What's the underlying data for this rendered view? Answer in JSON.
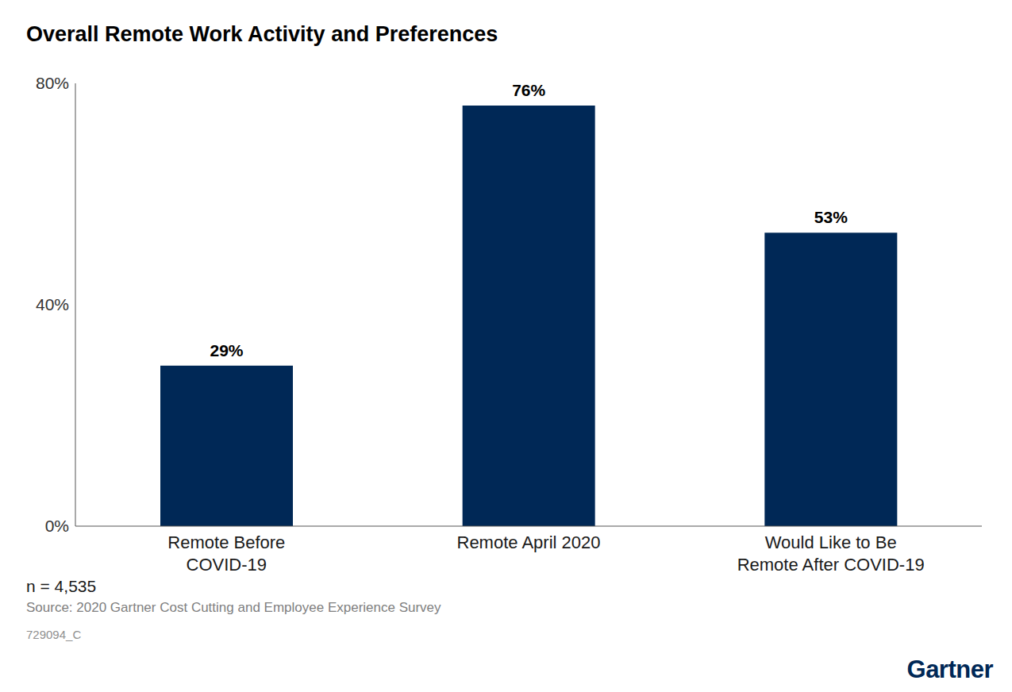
{
  "chart_data": {
    "type": "bar",
    "title": "Overall Remote Work Activity and Preferences",
    "categories": [
      "Remote Before COVID-19",
      "Remote April 2020",
      "Would Like to Be Remote After COVID-19"
    ],
    "values": [
      29,
      76,
      53
    ],
    "value_labels": [
      "29%",
      "76%",
      "53%"
    ],
    "data_labels": true,
    "color": "#002856",
    "ylim": [
      0,
      80
    ],
    "yticks": [
      {
        "value": 0,
        "label": "0%"
      },
      {
        "value": 40,
        "label": "40%"
      },
      {
        "value": 80,
        "label": "80%"
      }
    ],
    "grid": false,
    "annotations": [
      "n = 4,535",
      "Source: 2020 Gartner Cost Cutting and Employee Experience Survey",
      "729094_C"
    ],
    "logo": "Gartner"
  }
}
